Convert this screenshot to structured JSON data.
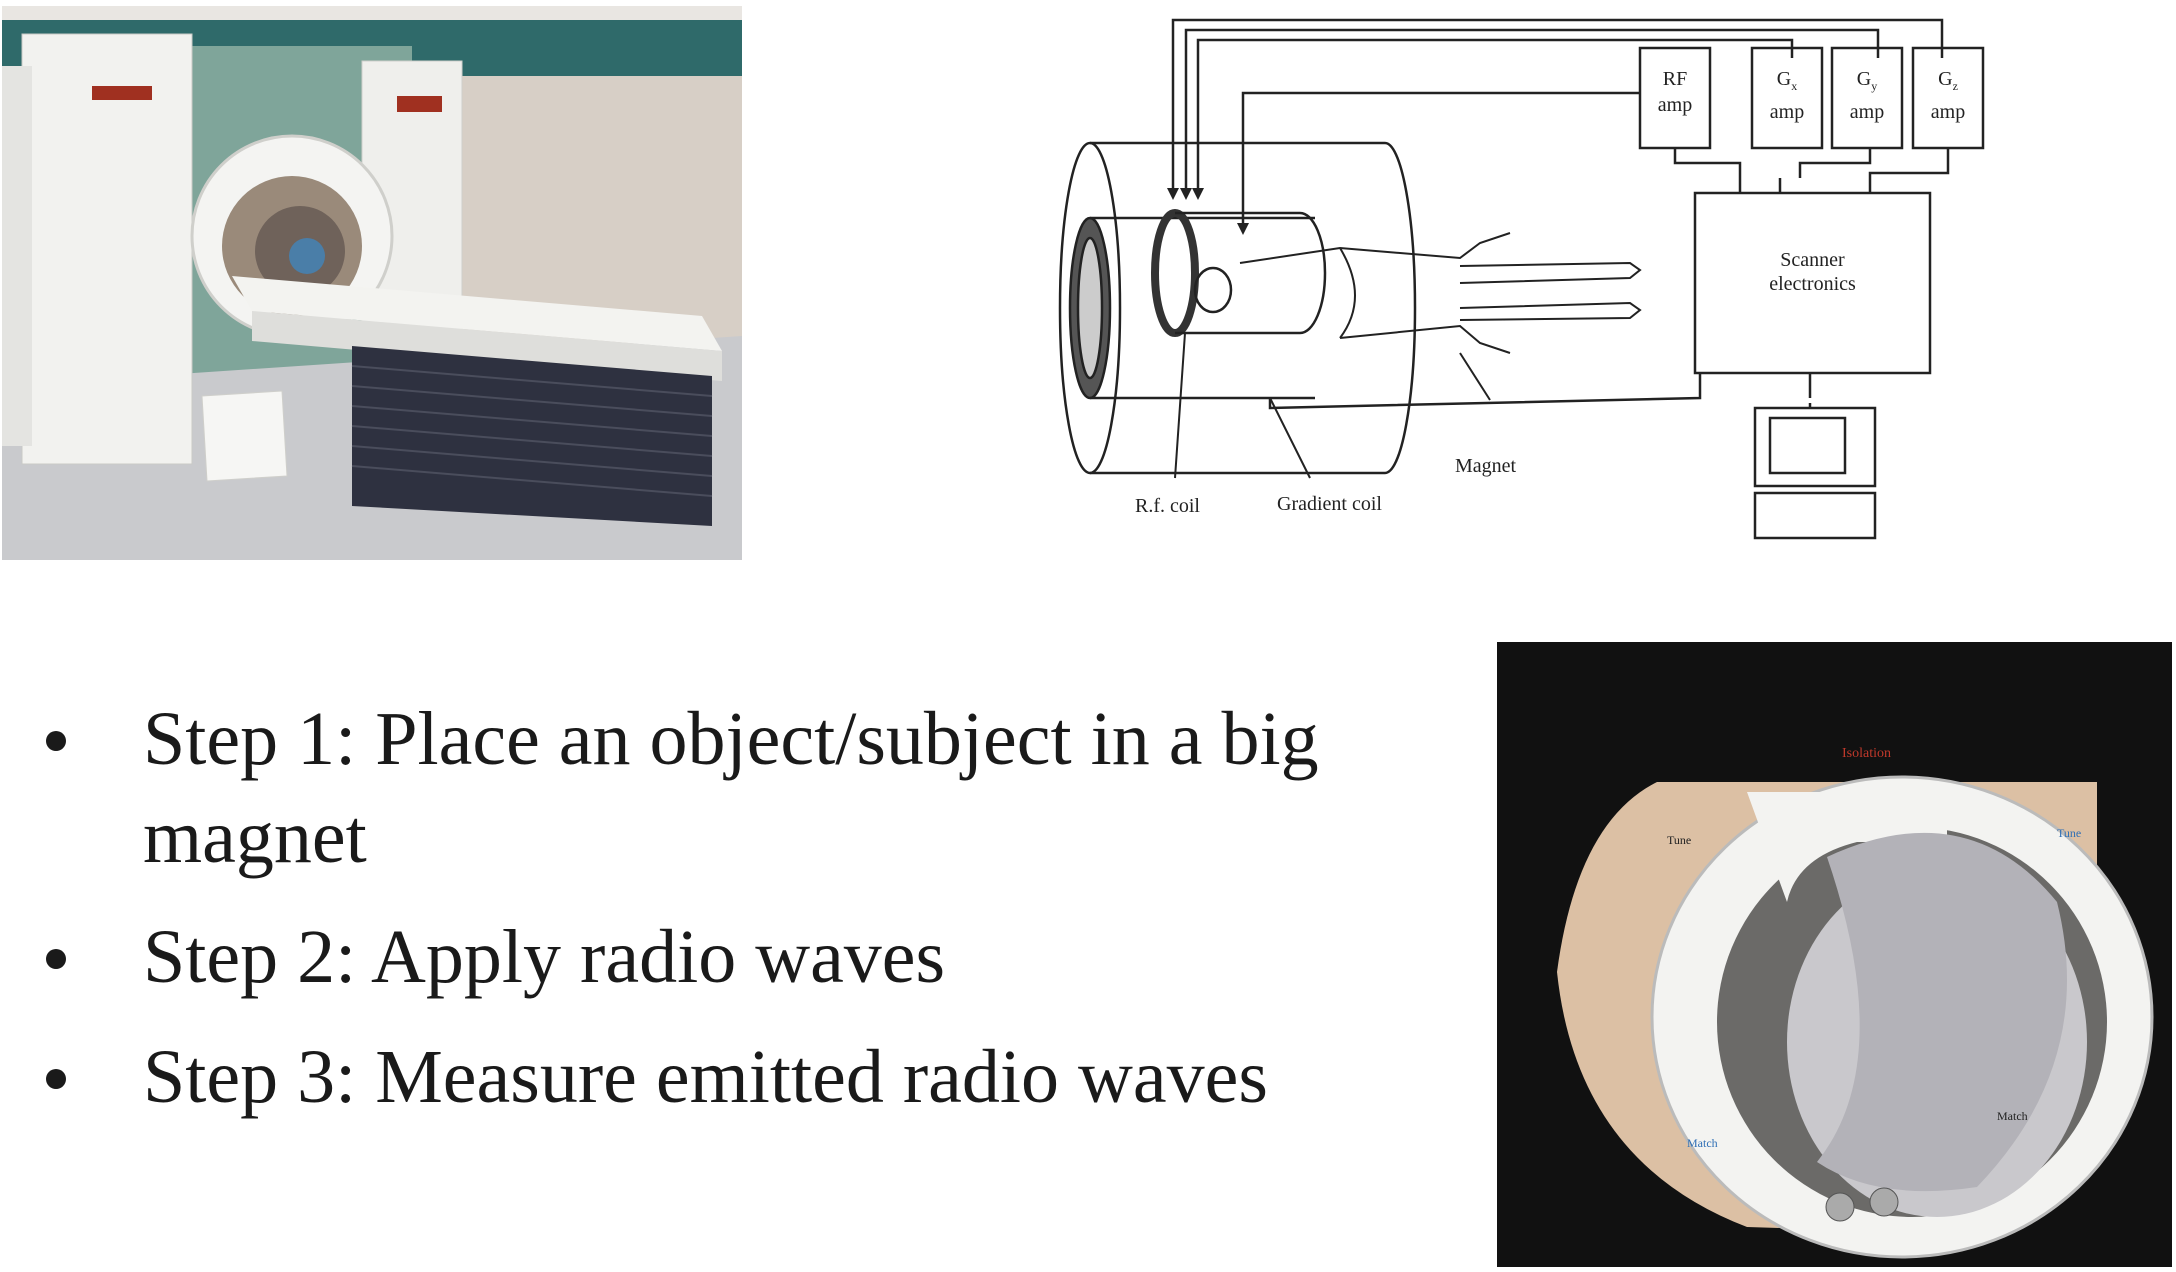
{
  "diagram": {
    "rf_amp": [
      "RF",
      "amp"
    ],
    "gx_amp": [
      "G",
      "x",
      "amp"
    ],
    "gy_amp": [
      "G",
      "y",
      "amp"
    ],
    "gz_amp": [
      "G",
      "z",
      "amp"
    ],
    "scanner": [
      "Scanner",
      "electronics"
    ],
    "labels": {
      "rf_coil": "R.f. coil",
      "gradient_coil": "Gradient coil",
      "magnet": "Magnet"
    }
  },
  "coil_photo": {
    "labels": [
      "Isolation",
      "Tune",
      "Tune",
      "Match",
      "Match"
    ]
  },
  "bullets": [
    "Step 1: Place an object/subject in a big magnet",
    "Step 2: Apply radio waves",
    "Step 3: Measure emitted radio waves"
  ],
  "colors": {
    "text": "#1a1a1a",
    "mri_wall": "#7fa59a",
    "mri_body": "#ececea",
    "mri_base": "#2e3140",
    "coil_background": "#111111",
    "coil_shell": "#dcc0a4",
    "coil_isolation_label": "#c0392b",
    "coil_tune_label": "#2f6fb5"
  }
}
